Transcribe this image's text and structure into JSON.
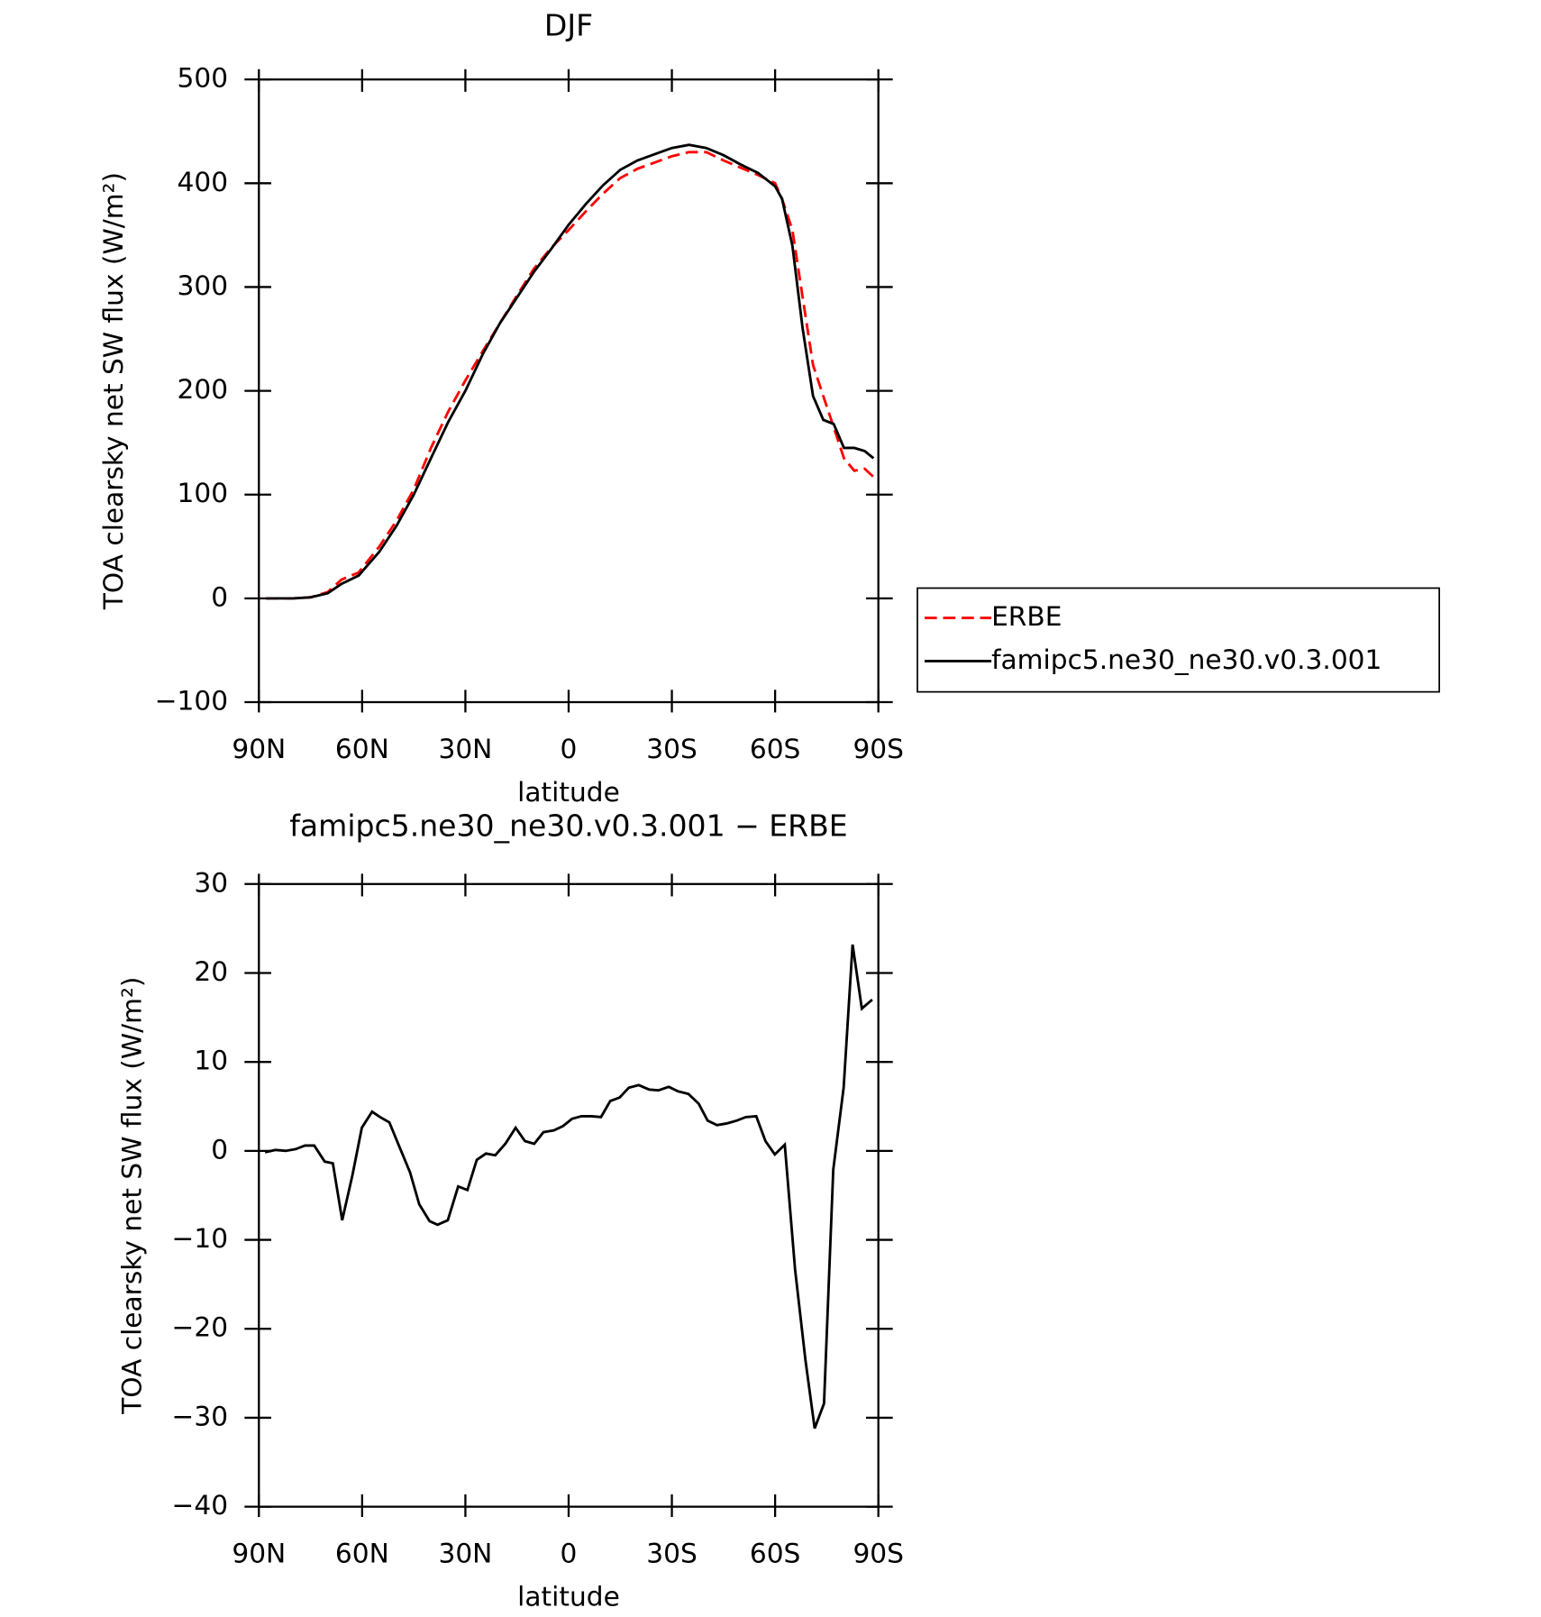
{
  "chart_data": [
    {
      "type": "line",
      "title": "DJF",
      "xlabel": "latitude",
      "ylabel": "TOA clearsky net SW flux (W/m²)",
      "xlim": [
        90,
        -90
      ],
      "xticks": [
        {
          "value": 90,
          "label": "90N"
        },
        {
          "value": 60,
          "label": "60N"
        },
        {
          "value": 30,
          "label": "30N"
        },
        0,
        {
          "value": -30,
          "label": "30S"
        },
        {
          "value": -60,
          "label": "60S"
        },
        {
          "value": -90,
          "label": "90S"
        }
      ],
      "ylim": [
        -100,
        500
      ],
      "yticks": [
        {
          "value": -100,
          "label": "−100"
        },
        0,
        100,
        200,
        300,
        400,
        500
      ],
      "x": [
        88,
        80,
        75,
        70,
        66,
        61,
        55,
        50,
        45,
        40,
        35,
        30,
        25,
        20,
        15,
        10,
        5,
        0,
        -5,
        -10,
        -15,
        -20,
        -25,
        -30,
        -35,
        -40,
        -45,
        -50,
        -55,
        -60,
        -62,
        -65,
        -68,
        -71,
        -74,
        -77,
        -80,
        -83,
        -86,
        -88.6
      ],
      "legend": "outside-right",
      "series": [
        {
          "name": "ERBE",
          "color": "#ff0000",
          "dash": true,
          "values": [
            0,
            0,
            1,
            6,
            18,
            25,
            50,
            75,
            105,
            145,
            180,
            210,
            238,
            265,
            292,
            318,
            338,
            355,
            373,
            390,
            405,
            414,
            420,
            426,
            430,
            430,
            422,
            415,
            408,
            400,
            385,
            355,
            290,
            225,
            195,
            165,
            135,
            123,
            125,
            117
          ]
        },
        {
          "name": "famipc5.ne30_ne30.v0.3.001",
          "color": "#000000",
          "dash": false,
          "values": [
            0,
            0,
            1,
            5,
            14,
            22,
            45,
            70,
            100,
            135,
            170,
            200,
            235,
            265,
            290,
            315,
            337,
            360,
            380,
            398,
            413,
            422,
            428,
            434,
            437,
            434,
            427,
            418,
            410,
            397,
            385,
            340,
            260,
            195,
            172,
            168,
            145,
            145,
            142,
            135
          ]
        }
      ]
    },
    {
      "type": "line",
      "title": "famipc5.ne30_ne30.v0.3.001 − ERBE",
      "xlabel": "latitude",
      "ylabel": "TOA clearsky net SW flux (W/m²)",
      "xlim": [
        90,
        -90
      ],
      "xticks": [
        {
          "value": 90,
          "label": "90N"
        },
        {
          "value": 60,
          "label": "60N"
        },
        {
          "value": 30,
          "label": "30N"
        },
        0,
        {
          "value": -30,
          "label": "30S"
        },
        {
          "value": -60,
          "label": "60S"
        },
        {
          "value": -90,
          "label": "90S"
        }
      ],
      "ylim": [
        -40,
        30
      ],
      "yticks": [
        {
          "value": -40,
          "label": "−40"
        },
        {
          "value": -30,
          "label": "−30"
        },
        {
          "value": -20,
          "label": "−20"
        },
        {
          "value": -10,
          "label": "−10"
        },
        0,
        10,
        20,
        30
      ],
      "x": [
        88.2,
        85.2,
        82.2,
        79.3,
        76.6,
        73.9,
        70.9,
        68.5,
        65.8,
        62.8,
        60.1,
        57.1,
        54.8,
        52.1,
        49.1,
        46.1,
        43.4,
        40.4,
        38.1,
        35.1,
        32.1,
        29.4,
        26.7,
        24.0,
        21.3,
        18.4,
        15.4,
        12.7,
        10.0,
        7.3,
        4.3,
        1.6,
        -1.0,
        -3.7,
        -6.7,
        -9.4,
        -12.1,
        -14.8,
        -17.5,
        -20.4,
        -23.4,
        -26.1,
        -29.1,
        -31.8,
        -34.8,
        -37.8,
        -40.4,
        -43.1,
        -46.1,
        -48.8,
        -51.5,
        -54.5,
        -57.2,
        -59.9,
        -62.8,
        -65.8,
        -68.8,
        -71.5,
        -74.2,
        -76.9,
        -79.9,
        -82.5,
        -85.2,
        -88.2
      ],
      "series": [
        {
          "color": "#000000",
          "dash": false,
          "values": [
            -0.15,
            0.1,
            0,
            0.2,
            0.6,
            0.6,
            -1.2,
            -1.4,
            -7.8,
            -2.7,
            2.6,
            4.4,
            3.8,
            3.2,
            0.4,
            -2.4,
            -6,
            -7.9,
            -8.3,
            -7.8,
            -4,
            -4.4,
            -1,
            -0.3,
            -0.5,
            0.8,
            2.6,
            1.1,
            0.8,
            2.1,
            2.3,
            2.8,
            3.6,
            3.9,
            3.9,
            3.8,
            5.6,
            6,
            7.1,
            7.4,
            6.9,
            6.8,
            7.2,
            6.7,
            6.4,
            5.3,
            3.4,
            2.9,
            3.1,
            3.4,
            3.8,
            3.9,
            1.1,
            -0.4,
            0.7,
            -13.3,
            -23.5,
            -31.2,
            -28.4,
            -2.1,
            7.1,
            23.2,
            16,
            17
          ]
        }
      ]
    }
  ]
}
